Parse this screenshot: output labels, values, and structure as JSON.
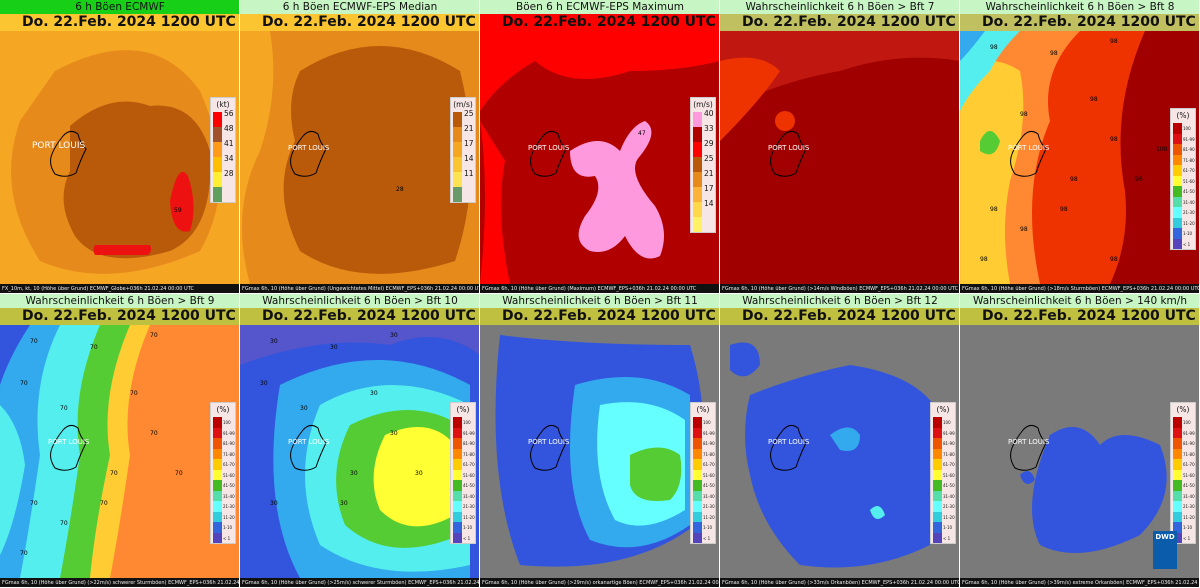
{
  "panels": [
    {
      "header": "6 h Böen ECMWF",
      "date": "Do. 22.Feb. 2024 1200 UTC",
      "footer": "FX_10m, kt, 10 (Höhe über Grund) ECMWF_Globe+036h  21.02.24 00:00 UTC",
      "legend": {
        "unit": "(kt)",
        "labels": [
          "56",
          "48",
          "41",
          "34",
          "28"
        ]
      },
      "city": "PORT LOUIS",
      "values": [
        "59"
      ],
      "active": true
    },
    {
      "header": "6 h Böen ECMWF-EPS Median",
      "date": "Do. 22.Feb. 2024 1200 UTC",
      "footer": "FGmax 6h, 10 (Höhe über Grund) (Ungewichtetes Mittel) ECMWF_EPS+036h  21.02.24 00:00 UTC",
      "legend": {
        "unit": "(m/s)",
        "labels": [
          "25",
          "21",
          "17",
          "14",
          "11"
        ]
      },
      "city": "PORT LOUIS",
      "values": [
        "28"
      ]
    },
    {
      "header": "Böen 6 h ECMWF-EPS Maximum",
      "date": "Do. 22.Feb. 2024 1200 UTC",
      "footer": "FGmax 6h, 10 (Höhe über Grund) (Maximum) ECMWF_EPS+036h  21.02.24 00:00 UTC",
      "legend": {
        "unit": "(m/s)",
        "labels": [
          "40",
          "33",
          "29",
          "25",
          "21",
          "17",
          "14"
        ]
      },
      "city": "PORT LOUIS",
      "values": [
        "47"
      ]
    },
    {
      "header": "Wahrscheinlichkeit 6 h Böen > Bft 7",
      "date": "Do. 22.Feb. 2024 1200 UTC",
      "footer": "FGmax 6h, 10 (Höhe über Grund) (>14m/s Windböen) ECMWF_EPS+036h  21.02.24 00:00 UTC",
      "legend": {
        "unit": "",
        "labels": []
      },
      "city": "PORT LOUIS",
      "values": []
    },
    {
      "header": "Wahrscheinlichkeit 6 h Böen > Bft 8",
      "date": "Do. 22.Feb. 2024 1200 UTC",
      "footer": "FGmax 6h, 10 (Höhe über Grund) (>18m/s Sturmböen) ECMWF_EPS+036h  21.02.24 00:00 UTC",
      "legend": {
        "unit": "(%)",
        "labels": [
          "100",
          "91-99",
          "81-90",
          "71-80",
          "61-70",
          "51-60",
          "41-50",
          "31-40",
          "21-30",
          "11-20",
          "1-10",
          "< 1"
        ]
      },
      "city": "PORT LOUIS",
      "values": [
        "98",
        "98",
        "98",
        "100",
        "98",
        "98",
        "98",
        "98",
        "98",
        "98",
        "98",
        "98",
        "98",
        "98"
      ]
    },
    {
      "header": "Wahrscheinlichkeit 6 h Böen > Bft 9",
      "date": "Do. 22.Feb. 2024 1200 UTC",
      "footer": "FGmax 6h, 10 (Höhe über Grund) (>22m/s) schwerer Sturmböen) ECMWF_EPS+036h  21.02.24 00:00 UTC",
      "legend": {
        "unit": "(%)",
        "labels": [
          "100",
          "91-99",
          "81-90",
          "71-80",
          "61-70",
          "51-60",
          "41-50",
          "31-40",
          "21-30",
          "11-20",
          "1-10",
          "< 1"
        ]
      },
      "city": "PORT LOUIS",
      "values": [
        "70",
        "70",
        "70",
        "70",
        "70",
        "70",
        "70",
        "70",
        "70",
        "70",
        "70",
        "70",
        "70"
      ]
    },
    {
      "header": "Wahrscheinlichkeit 6 h Böen > Bft 10",
      "date": "Do. 22.Feb. 2024 1200 UTC",
      "footer": "FGmax 6h, 10 (Höhe über Grund) (>25m/s) schwerer Sturmböen) ECMWF_EPS+036h  21.02.24 00:00 UTC",
      "legend": {
        "unit": "(%)",
        "labels": [
          "100",
          "91-99",
          "81-90",
          "71-80",
          "61-70",
          "51-60",
          "41-50",
          "31-40",
          "21-30",
          "11-20",
          "1-10",
          "< 1"
        ]
      },
      "city": "PORT LOUIS",
      "values": [
        "30",
        "30",
        "30",
        "30",
        "30",
        "30",
        "30",
        "30",
        "30",
        "30",
        "30"
      ]
    },
    {
      "header": "Wahrscheinlichkeit 6 h Böen > Bft 11",
      "date": "Do. 22.Feb. 2024 1200 UTC",
      "footer": "FGmax 6h, 10 (Höhe über Grund) (>29m/s) orkanartige Böen) ECMWF_EPS+036h  21.02.24 00:00 UTC",
      "legend": {
        "unit": "(%)",
        "labels": [
          "100",
          "91-99",
          "81-90",
          "71-80",
          "61-70",
          "51-60",
          "41-50",
          "31-40",
          "21-30",
          "11-20",
          "1-10",
          "< 1"
        ]
      },
      "city": "PORT LOUIS",
      "values": []
    },
    {
      "header": "Wahrscheinlichkeit 6 h Böen > Bft 12",
      "date": "Do. 22.Feb. 2024 1200 UTC",
      "footer": "FGmax 6h, 10 (Höhe über Grund) (>33m/s Orkanböen) ECMWF_EPS+036h  21.02.24 00:00 UTC",
      "legend": {
        "unit": "(%)",
        "labels": [
          "100",
          "91-99",
          "81-90",
          "71-80",
          "61-70",
          "51-60",
          "41-50",
          "31-40",
          "21-30",
          "11-20",
          "1-10",
          "< 1"
        ]
      },
      "city": "PORT LOUIS",
      "values": []
    },
    {
      "header": "Wahrscheinlichkeit 6 h Böen > 140 km/h",
      "date": "Do. 22.Feb. 2024 1200 UTC",
      "footer": "FGmax 6h, 10 (Höhe über Grund) (>39m/s) extreme Orkanböen) ECMWF_EPS+036h  21.02.24 00:00 UTC",
      "legend": {
        "unit": "(%)",
        "labels": [
          "100",
          "91-99",
          "81-90",
          "71-80",
          "61-70",
          "51-60",
          "41-50",
          "31-40",
          "21-30",
          "11-20",
          "1-10",
          "< 1"
        ]
      },
      "city": "PORT LOUIS",
      "values": [],
      "logo": "DWD"
    }
  ],
  "colors": {
    "gust_kt": [
      "#ff0000",
      "#a0522d",
      "#ff9a1a",
      "#ffbe00",
      "#ffee33",
      "#5fa05f"
    ],
    "gust_med": [
      "#b85a0a",
      "#e68a1c",
      "#f5a623",
      "#fbc531",
      "#fde352",
      "#6a9a6a"
    ],
    "gust_max": [
      "#ff99dd",
      "#b00000",
      "#ff0000",
      "#b85a0a",
      "#e68a1c",
      "#fbb33a",
      "#ffd84a",
      "#fff066"
    ],
    "prob": [
      "#ee1111",
      "#a00000",
      "#ee3300",
      "#ff8833",
      "#ffcc33",
      "#ffff33",
      "#55cc33",
      "#00bb44",
      "#55eeee",
      "#33aaee",
      "#3355dd",
      "#5555cc",
      "#7a7a7a"
    ],
    "prob_named": {
      "100": "#bb0000",
      "91-99": "#dd1111",
      "81-90": "#ee5500",
      "71-80": "#ff8800",
      "61-70": "#ffcc00",
      "51-60": "#ffff33",
      "41-50": "#44bb22",
      "31-40": "#55ddaa",
      "21-30": "#66ffff",
      "11-20": "#33ccdd",
      "1-10": "#3366dd",
      "< 1": "#5544bb"
    }
  }
}
